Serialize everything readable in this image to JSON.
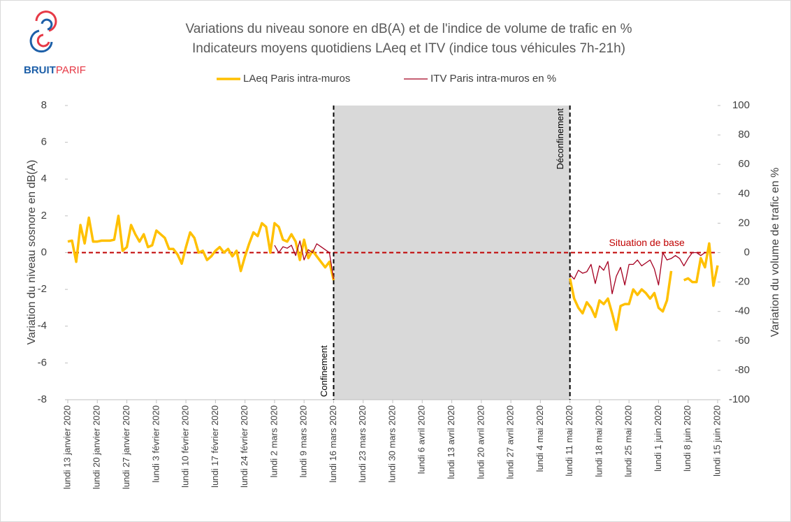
{
  "chart_data": {
    "type": "line",
    "title": "Variations du niveau sonore en dB(A) et de l'indice de volume de trafic en %",
    "subtitle": "Indicateurs moyens quotidiens LAeq et ITV (indice tous véhicules 7h-21h)",
    "logo": [
      "BRUIT",
      "PARIF"
    ],
    "y_label": "Variation du niveau sosnore en dB(A)",
    "y2_label": "Variation du volume de trafic en %",
    "xlim": [
      "2020-01-13",
      "2020-06-15"
    ],
    "xticks": [
      {
        "value": "2020-01-13",
        "label": "lundi 13 janvier 2020"
      },
      {
        "value": "2020-01-20",
        "label": "lundi 20 janvier 2020"
      },
      {
        "value": "2020-01-27",
        "label": "lundi 27 janvier 2020"
      },
      {
        "value": "2020-02-03",
        "label": "lundi 3 février 2020"
      },
      {
        "value": "2020-02-10",
        "label": "lundi 10 février 2020"
      },
      {
        "value": "2020-02-17",
        "label": "lundi 17 février 2020"
      },
      {
        "value": "2020-02-24",
        "label": "lundi 24 février 2020"
      },
      {
        "value": "2020-03-02",
        "label": "lundi 2 mars 2020"
      },
      {
        "value": "2020-03-09",
        "label": "lundi 9 mars 2020"
      },
      {
        "value": "2020-03-16",
        "label": "lundi 16 mars 2020"
      },
      {
        "value": "2020-03-23",
        "label": "lundi 23 mars 2020"
      },
      {
        "value": "2020-03-30",
        "label": "lundi 30 mars 2020"
      },
      {
        "value": "2020-04-06",
        "label": "lundi 6 avril 2020"
      },
      {
        "value": "2020-04-13",
        "label": "lundi 13 avril 2020"
      },
      {
        "value": "2020-04-20",
        "label": "lundi 20 avril 2020"
      },
      {
        "value": "2020-04-27",
        "label": "lundi 27 avril 2020"
      },
      {
        "value": "2020-05-04",
        "label": "lundi 4 mai 2020"
      },
      {
        "value": "2020-05-11",
        "label": "lundi 11 mai 2020"
      },
      {
        "value": "2020-05-18",
        "label": "lundi 18 mai 2020"
      },
      {
        "value": "2020-05-25",
        "label": "lundi 25 mai 2020"
      },
      {
        "value": "2020-06-01",
        "label": "lundi 1 juin 2020"
      },
      {
        "value": "2020-06-08",
        "label": "lundi 8 juin 2020"
      },
      {
        "value": "2020-06-15",
        "label": "lundi 15 juin 2020"
      }
    ],
    "ylim": [
      -8,
      8
    ],
    "yticks": [
      -8,
      -6,
      -4,
      -2,
      0,
      2,
      4,
      6,
      8
    ],
    "y2lim": [
      -100,
      100
    ],
    "y2ticks": [
      -100,
      -80,
      -60,
      -40,
      -20,
      0,
      20,
      40,
      60,
      80,
      100
    ],
    "shaded_range": [
      "2020-03-16",
      "2020-05-11"
    ],
    "annotations": [
      {
        "text": "Confinement",
        "x": "2020-03-16"
      },
      {
        "text": "Déconfinement",
        "x": "2020-05-11"
      }
    ],
    "reference_line": {
      "y": 0,
      "label": "Situation de base",
      "color": "#c00000"
    },
    "x": [
      "2020-01-13",
      "2020-01-14",
      "2020-01-15",
      "2020-01-16",
      "2020-01-17",
      "2020-01-18",
      "2020-01-19",
      "2020-01-20",
      "2020-01-21",
      "2020-01-22",
      "2020-01-23",
      "2020-01-24",
      "2020-01-25",
      "2020-01-26",
      "2020-01-27",
      "2020-01-28",
      "2020-01-29",
      "2020-01-30",
      "2020-01-31",
      "2020-02-01",
      "2020-02-02",
      "2020-02-03",
      "2020-02-04",
      "2020-02-05",
      "2020-02-06",
      "2020-02-07",
      "2020-02-08",
      "2020-02-09",
      "2020-02-10",
      "2020-02-11",
      "2020-02-12",
      "2020-02-13",
      "2020-02-14",
      "2020-02-15",
      "2020-02-16",
      "2020-02-17",
      "2020-02-18",
      "2020-02-19",
      "2020-02-20",
      "2020-02-21",
      "2020-02-22",
      "2020-02-23",
      "2020-02-24",
      "2020-02-25",
      "2020-02-26",
      "2020-02-27",
      "2020-02-28",
      "2020-02-29",
      "2020-03-01",
      "2020-03-02",
      "2020-03-03",
      "2020-03-04",
      "2020-03-05",
      "2020-03-06",
      "2020-03-07",
      "2020-03-08",
      "2020-03-09",
      "2020-03-10",
      "2020-03-11",
      "2020-03-12",
      "2020-03-13",
      "2020-03-14",
      "2020-03-15",
      "2020-03-16",
      "2020-03-17",
      "2020-05-11",
      "2020-05-12",
      "2020-05-13",
      "2020-05-14",
      "2020-05-15",
      "2020-05-16",
      "2020-05-17",
      "2020-05-18",
      "2020-05-19",
      "2020-05-20",
      "2020-05-21",
      "2020-05-22",
      "2020-05-23",
      "2020-05-24",
      "2020-05-25",
      "2020-05-26",
      "2020-05-27",
      "2020-05-28",
      "2020-05-29",
      "2020-05-30",
      "2020-05-31",
      "2020-06-01",
      "2020-06-02",
      "2020-06-03",
      "2020-06-04",
      "2020-06-05",
      "2020-06-06",
      "2020-06-07",
      "2020-06-08",
      "2020-06-09",
      "2020-06-10",
      "2020-06-11",
      "2020-06-12",
      "2020-06-13",
      "2020-06-14",
      "2020-06-15"
    ],
    "series": [
      {
        "name": "LAeq Paris intra-muros",
        "color": "#ffc000",
        "width": 3.5,
        "values": [
          0.6,
          0.65,
          -0.5,
          1.5,
          0.5,
          1.9,
          0.6,
          0.6,
          0.65,
          0.65,
          0.65,
          0.7,
          2.0,
          0.1,
          0.3,
          1.5,
          1.0,
          0.6,
          1.0,
          0.3,
          0.4,
          1.2,
          1.0,
          0.8,
          0.2,
          0.2,
          -0.1,
          -0.6,
          0.3,
          1.1,
          0.8,
          0.0,
          0.1,
          -0.4,
          -0.2,
          0.1,
          0.3,
          0.0,
          0.2,
          -0.2,
          0.1,
          -1.0,
          -0.2,
          0.5,
          1.1,
          0.9,
          1.6,
          1.4,
          0.0,
          1.6,
          1.4,
          0.7,
          0.6,
          1.0,
          0.6,
          -0.4,
          0.7,
          -0.3,
          0.1,
          -0.2,
          -0.5,
          -0.8,
          -0.5,
          -1.5,
          null,
          -1.4,
          -2.5,
          -3.0,
          -3.3,
          -2.7,
          -3.0,
          -3.5,
          -2.6,
          -2.8,
          -2.5,
          -3.3,
          -4.2,
          -2.9,
          -2.8,
          -2.8,
          -2.0,
          -2.3,
          -2.0,
          -2.2,
          -2.5,
          -2.2,
          -3.0,
          -3.2,
          -2.6,
          -1.0,
          null,
          null,
          -1.5,
          -1.4,
          -1.6,
          -1.6,
          -0.3,
          -0.8,
          0.5,
          -1.8,
          -0.7
        ]
      },
      {
        "name": "ITV Paris intra-muros en %",
        "color": "#a50021",
        "width": 1.3,
        "axis": "y2",
        "values": [
          null,
          null,
          null,
          null,
          null,
          null,
          null,
          null,
          null,
          null,
          null,
          null,
          null,
          null,
          null,
          null,
          null,
          null,
          null,
          null,
          null,
          null,
          null,
          null,
          null,
          null,
          null,
          null,
          null,
          null,
          null,
          null,
          null,
          null,
          null,
          null,
          null,
          null,
          null,
          null,
          null,
          null,
          null,
          null,
          null,
          null,
          null,
          null,
          null,
          5,
          0,
          4,
          3,
          5,
          -2,
          8,
          -5,
          2,
          0,
          6,
          4,
          2,
          0,
          -18,
          null,
          -15,
          -18,
          -12,
          -14,
          -13,
          -8,
          -21,
          -9,
          -12,
          -6,
          -28,
          -16,
          -10,
          -22,
          -8,
          -8,
          -5,
          -9,
          -7,
          -5,
          -11,
          -22,
          0,
          -5,
          -4,
          -2,
          -4,
          -9,
          -4,
          0,
          0,
          -2,
          0,
          null,
          null,
          null
        ]
      }
    ]
  }
}
